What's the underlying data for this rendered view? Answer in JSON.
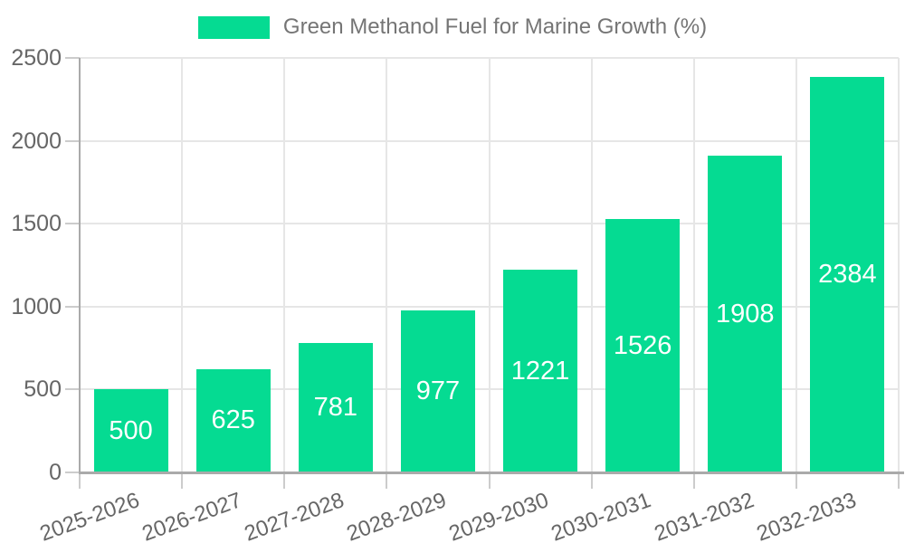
{
  "chart_data": {
    "type": "bar",
    "title": "Green Methanol Fuel for Marine Growth (%)",
    "legend_label": "Green Methanol Fuel for Marine Growth (%)",
    "legend_position": "top-center",
    "categories": [
      "2025-2026",
      "2026-2027",
      "2027-2028",
      "2028-2029",
      "2029-2030",
      "2030-2031",
      "2031-2032",
      "2032-2033"
    ],
    "values": [
      500,
      625,
      781,
      977,
      1221,
      1526,
      1908,
      2384
    ],
    "value_labels_shown": true,
    "xlabel": "",
    "ylabel": "",
    "ylim": [
      0,
      2500
    ],
    "yticks": [
      0,
      500,
      1000,
      1500,
      2000,
      2500
    ],
    "grid": true,
    "x_tick_label_rotation_deg": -20,
    "colors": {
      "bar": "#05db92",
      "value_label": "#ffffff",
      "axis_text": "#666666",
      "legend_text": "#757575",
      "gridline": "#e6e6e6",
      "axis_line": "#aaaaaa",
      "tick_mark": "#cccccc",
      "background": "#ffffff"
    }
  }
}
